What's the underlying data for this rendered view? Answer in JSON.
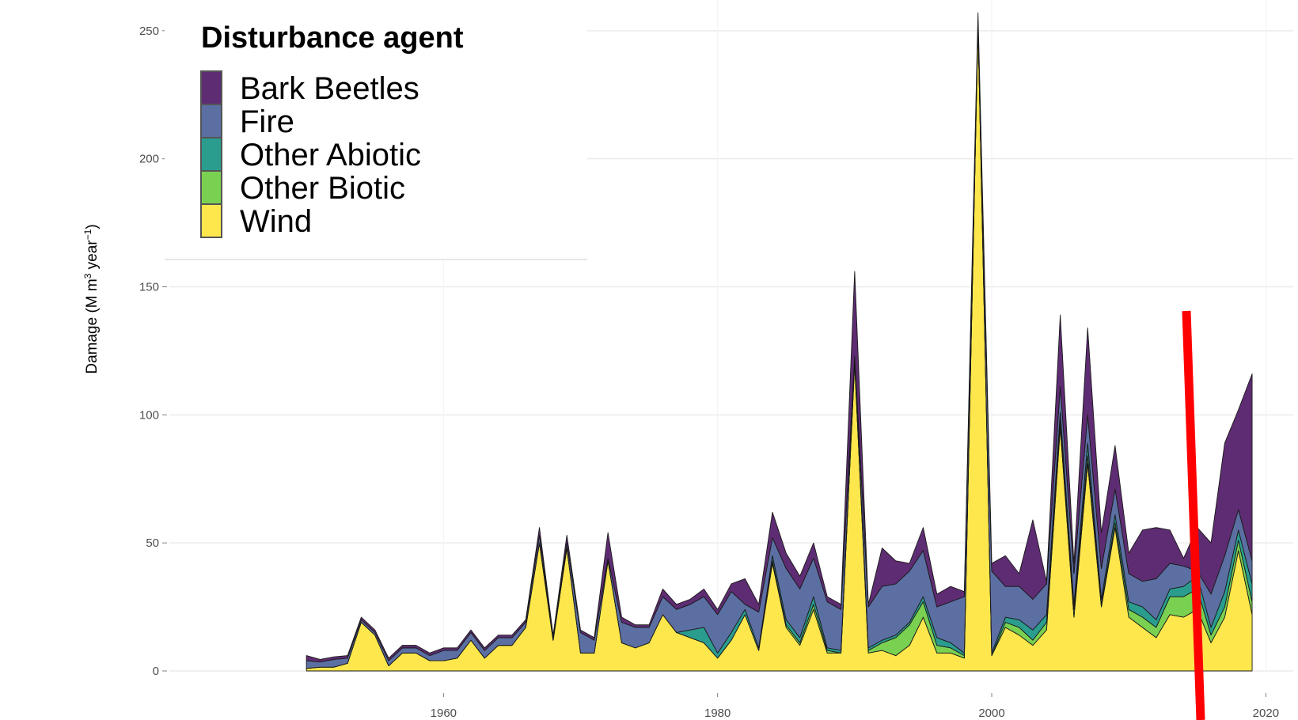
{
  "chart_data": {
    "type": "area",
    "stacked": true,
    "title": "",
    "xlabel": "",
    "ylabel": "Damage (M m³ year⁻¹)",
    "ylabel_parts": {
      "pre": "Damage (M m",
      "sup1": "3",
      "mid": " year",
      "sup2": "−1",
      "post": ")"
    },
    "xlim": [
      1940,
      2022
    ],
    "ylim": [
      0,
      262
    ],
    "x_ticks": [
      1960,
      1980,
      2000,
      2020
    ],
    "y_ticks": [
      0,
      50,
      100,
      150,
      200,
      250
    ],
    "grid": true,
    "legend": {
      "title": "Disturbance agent",
      "position": "top-left"
    },
    "x": [
      1950,
      1951,
      1952,
      1953,
      1954,
      1955,
      1956,
      1957,
      1958,
      1959,
      1960,
      1961,
      1962,
      1963,
      1964,
      1965,
      1966,
      1967,
      1968,
      1969,
      1970,
      1971,
      1972,
      1973,
      1974,
      1975,
      1976,
      1977,
      1978,
      1979,
      1980,
      1981,
      1982,
      1983,
      1984,
      1985,
      1986,
      1987,
      1988,
      1989,
      1990,
      1991,
      1992,
      1993,
      1994,
      1995,
      1996,
      1997,
      1998,
      1999,
      2000,
      2001,
      2002,
      2003,
      2004,
      2005,
      2006,
      2007,
      2008,
      2009,
      2010,
      2011,
      2012,
      2013,
      2014,
      2015,
      2016,
      2017,
      2018,
      2019
    ],
    "series": [
      {
        "name": "Wind",
        "color": "#fde74c",
        "values": [
          1,
          1.5,
          1.5,
          3,
          19,
          14,
          2,
          7,
          7,
          4,
          4,
          5,
          12,
          5,
          10,
          10,
          17,
          50,
          12,
          48,
          7,
          7,
          43,
          11,
          9,
          11,
          22,
          15,
          13,
          11,
          5,
          12,
          22,
          8,
          42,
          17,
          10,
          24,
          7,
          7,
          120,
          7,
          8,
          6,
          10,
          21,
          7,
          7,
          5,
          252,
          6,
          17,
          14,
          10,
          16,
          95,
          21,
          81,
          25,
          56,
          21,
          17,
          13,
          22,
          21,
          24,
          11,
          21,
          47,
          22
        ]
      },
      {
        "name": "Other Biotic",
        "color": "#7ad151",
        "values": [
          0,
          0,
          0,
          0,
          0,
          0,
          0,
          0,
          0,
          0,
          0,
          0,
          0,
          0,
          0,
          0,
          0,
          0,
          0,
          0,
          0,
          0,
          0,
          0,
          0,
          0,
          0,
          0,
          0,
          0,
          0,
          0,
          0,
          0,
          1,
          1,
          1,
          2,
          1,
          0,
          0,
          1,
          3,
          7,
          8,
          6,
          3,
          2,
          1,
          0,
          0,
          2,
          3,
          2,
          3,
          3,
          3,
          3,
          1,
          2,
          3,
          4,
          4,
          7,
          8,
          8,
          3,
          4,
          4,
          5
        ]
      },
      {
        "name": "Other Abiotic",
        "color": "#2a9d8f",
        "values": [
          0,
          0,
          0,
          0,
          0,
          0,
          0,
          0,
          0,
          0,
          0,
          0,
          0,
          0,
          0,
          0,
          0,
          0,
          0,
          0,
          0,
          0,
          0,
          0,
          0,
          0,
          0,
          0,
          3,
          6,
          2,
          3,
          2,
          1,
          2,
          2,
          2,
          3,
          1,
          1,
          2,
          1,
          1,
          1,
          1,
          2,
          3,
          2,
          1,
          0,
          1,
          2,
          3,
          4,
          3,
          3,
          2,
          5,
          2,
          3,
          3,
          4,
          3,
          3,
          4,
          5,
          3,
          6,
          4,
          7
        ]
      },
      {
        "name": "Fire",
        "color": "#5b6fa3",
        "values": [
          3,
          2,
          3,
          2,
          1,
          1,
          2,
          2,
          2,
          2,
          4,
          3,
          3,
          3,
          3,
          3,
          2,
          3,
          1,
          2,
          8,
          5,
          1,
          8,
          8,
          6,
          7,
          9,
          10,
          12,
          15,
          16,
          2,
          14,
          7,
          20,
          19,
          15,
          18,
          16,
          1,
          16,
          21,
          20,
          20,
          18,
          12,
          16,
          22,
          1,
          32,
          12,
          13,
          12,
          12,
          10,
          12,
          11,
          12,
          10,
          11,
          10,
          16,
          10,
          8,
          2,
          13,
          14,
          8,
          9
        ]
      },
      {
        "name": "Bark Beetles",
        "color": "#5e2c72",
        "values": [
          2,
          1,
          1,
          1,
          1,
          1,
          1,
          1,
          1,
          1,
          1,
          1,
          1,
          1,
          1,
          1,
          1,
          3,
          1,
          3,
          1,
          1,
          10,
          2,
          1,
          1,
          3,
          2,
          2,
          3,
          2,
          3,
          10,
          3,
          10,
          6,
          5,
          6,
          2,
          2,
          33,
          1,
          15,
          9,
          3,
          9,
          5,
          6,
          2,
          4,
          3,
          12,
          5,
          31,
          1,
          28,
          4,
          34,
          14,
          17,
          8,
          20,
          20,
          13,
          3,
          17,
          20,
          44,
          39,
          73
        ]
      }
    ]
  }
}
